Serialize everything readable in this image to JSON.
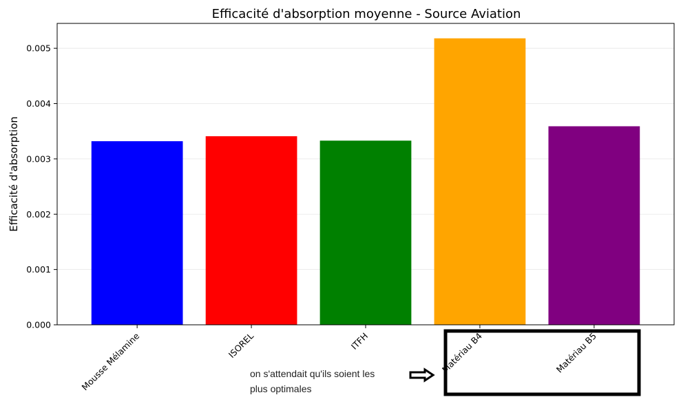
{
  "chart_data": {
    "type": "bar",
    "title": "Efficacité d'absorption moyenne - Source Aviation",
    "xlabel": "",
    "ylabel": "Efficacité d'absorption",
    "categories": [
      "Mousse Mélamine",
      "ISOREL",
      "ITFH",
      "Matériau B4",
      "Matériau B5"
    ],
    "values": [
      0.00332,
      0.00341,
      0.00333,
      0.00518,
      0.00359
    ],
    "colors": [
      "#0000ff",
      "#ff0000",
      "#008000",
      "#ffa500",
      "#800080"
    ],
    "ylim": [
      0,
      0.00545
    ],
    "yticks": [
      "0.000",
      "0.001",
      "0.002",
      "0.003",
      "0.004",
      "0.005"
    ],
    "grid": "horizontal",
    "legend": "none"
  },
  "annotation": {
    "line1": "on s'attendait qu'ils soient les",
    "line2": "plus optimales",
    "arrow_icon": "right-arrow-icon",
    "highlight_box_color": "#000000"
  }
}
